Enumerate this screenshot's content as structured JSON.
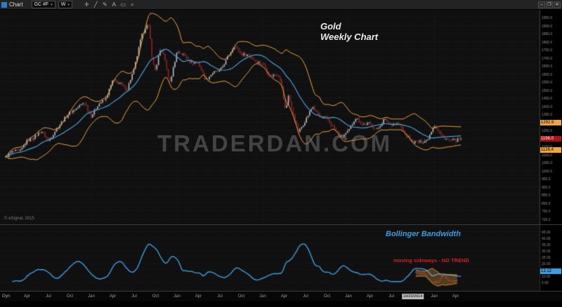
{
  "window": {
    "title": "Chart",
    "controls": [
      {
        "name": "minimize-icon",
        "glyph": "–"
      },
      {
        "name": "restore-icon",
        "glyph": "❐"
      },
      {
        "name": "close-icon",
        "glyph": "✕"
      }
    ]
  },
  "toolbar": {
    "symbol_value": "GC #F",
    "interval_value": "W",
    "dropdown_glyph": "▾",
    "tools": [
      {
        "name": "crosshair-icon",
        "glyph": "✛"
      },
      {
        "name": "trendline-icon",
        "glyph": "╱"
      },
      {
        "name": "pencil-icon",
        "glyph": "✎"
      },
      {
        "name": "text-tool-icon",
        "glyph": "A"
      },
      {
        "name": "eraser-icon",
        "glyph": "▭"
      },
      {
        "name": "zoom-icon",
        "glyph": "⌕"
      }
    ]
  },
  "main_chart": {
    "title_line1": "Gold",
    "title_line2": "Weekly Chart",
    "watermark": "TRADERDAN.COM",
    "copyright": "© eSignal, 2015",
    "price_labels": {
      "upper_band": "1292.9",
      "last": "1196.0",
      "lower_band": "1126.4"
    }
  },
  "bandwidth_panel": {
    "label": "Bollinger Bandwidth",
    "annotation": "moving sideways - NO TREND",
    "value_label": "13.12"
  },
  "time_axis": {
    "corner_label": "Dyn",
    "labels": [
      {
        "m": 3,
        "text": "Apr"
      },
      {
        "m": 6,
        "text": "Jul"
      },
      {
        "m": 9,
        "text": "Oct"
      },
      {
        "m": 12,
        "text": "Jan"
      },
      {
        "m": 15,
        "text": "Apr"
      },
      {
        "m": 18,
        "text": "Jul"
      },
      {
        "m": 21,
        "text": "Oct"
      },
      {
        "m": 24,
        "text": "Jan"
      },
      {
        "m": 27,
        "text": "Apr"
      },
      {
        "m": 30,
        "text": "Jul"
      },
      {
        "m": 33,
        "text": "Oct"
      },
      {
        "m": 36,
        "text": "Jan"
      },
      {
        "m": 39,
        "text": "Apr"
      },
      {
        "m": 42,
        "text": "Jul"
      },
      {
        "m": 45,
        "text": "Oct"
      },
      {
        "m": 48,
        "text": "Jan"
      },
      {
        "m": 51,
        "text": "Apr"
      },
      {
        "m": 54,
        "text": "Jul"
      },
      {
        "m": 60,
        "text": "Jan"
      },
      {
        "m": 63,
        "text": "Apr"
      }
    ],
    "highlight": {
      "m": 57,
      "text": "10/20/2014"
    }
  },
  "colors": {
    "band": "#f0a340",
    "ma": "#4a9fdc",
    "bandwidth_line": "#3d9de0",
    "up_candle": "#b8b8b8",
    "down_candle": "#8c1f1f",
    "up_wick": "#8a8a8a",
    "down_wick": "#a05050",
    "last_price_bg": "#aa1414",
    "annotation_red": "#cc2222"
  },
  "chart_data": {
    "type": "candlestick",
    "symbol": "GC #F",
    "interval": "Weekly",
    "title": "Gold Weekly Chart",
    "price_axis": {
      "min": 690,
      "max": 1968,
      "tick_min": 700,
      "tick_max": 1950,
      "tick_step": 50
    },
    "series_start": "2010-01",
    "months_total": 64,
    "anchor_closes": [
      [
        0,
        1080
      ],
      [
        1,
        1118
      ],
      [
        2,
        1113
      ],
      [
        3,
        1180
      ],
      [
        4,
        1205
      ],
      [
        5,
        1244
      ],
      [
        6,
        1181
      ],
      [
        7,
        1248
      ],
      [
        8,
        1307
      ],
      [
        9,
        1357
      ],
      [
        10,
        1385
      ],
      [
        11,
        1421
      ],
      [
        12,
        1333
      ],
      [
        13,
        1411
      ],
      [
        14,
        1439
      ],
      [
        15,
        1556
      ],
      [
        16,
        1536
      ],
      [
        17,
        1502
      ],
      [
        18,
        1628
      ],
      [
        19,
        1826
      ],
      [
        19.7,
        1898
      ],
      [
        20.1,
        1880
      ],
      [
        20.6,
        1657
      ],
      [
        21,
        1620
      ],
      [
        21.5,
        1725
      ],
      [
        22,
        1746
      ],
      [
        22.7,
        1595
      ],
      [
        23,
        1540
      ],
      [
        24,
        1737
      ],
      [
        25,
        1711
      ],
      [
        26,
        1668
      ],
      [
        27,
        1664
      ],
      [
        28,
        1558
      ],
      [
        29,
        1604
      ],
      [
        30,
        1614
      ],
      [
        31,
        1692
      ],
      [
        32,
        1772
      ],
      [
        33,
        1719
      ],
      [
        34,
        1715
      ],
      [
        35,
        1675
      ],
      [
        36,
        1660
      ],
      [
        37,
        1580
      ],
      [
        38,
        1598
      ],
      [
        38.5,
        1560
      ],
      [
        39.2,
        1361
      ],
      [
        39.6,
        1470
      ],
      [
        40,
        1387
      ],
      [
        41,
        1234
      ],
      [
        42,
        1312
      ],
      [
        43,
        1395
      ],
      [
        44,
        1327
      ],
      [
        45,
        1323
      ],
      [
        46,
        1253
      ],
      [
        47,
        1205
      ],
      [
        48,
        1240
      ],
      [
        49,
        1326
      ],
      [
        50,
        1283
      ],
      [
        51,
        1288
      ],
      [
        52,
        1250
      ],
      [
        53,
        1315
      ],
      [
        54,
        1285
      ],
      [
        55,
        1287
      ],
      [
        56,
        1216
      ],
      [
        57,
        1173
      ],
      [
        58,
        1175
      ],
      [
        59,
        1184
      ],
      [
        60,
        1283
      ],
      [
        61,
        1213
      ],
      [
        62,
        1183
      ],
      [
        63,
        1184
      ],
      [
        64,
        1196
      ]
    ],
    "overlays": [
      {
        "name": "SMA(20)",
        "color": "#4a9fdc"
      },
      {
        "name": "Bollinger Bands (20,2)",
        "color": "#f0a340",
        "upper_last": 1292.9,
        "lower_last": 1126.4
      }
    ],
    "last_price": 1196.0,
    "lower_panel": {
      "name": "Bollinger Bandwidth",
      "last": 13.12,
      "axis": {
        "min": 0,
        "max": 48,
        "tick_min": 5,
        "tick_max": 45,
        "tick_step": 5
      }
    }
  }
}
